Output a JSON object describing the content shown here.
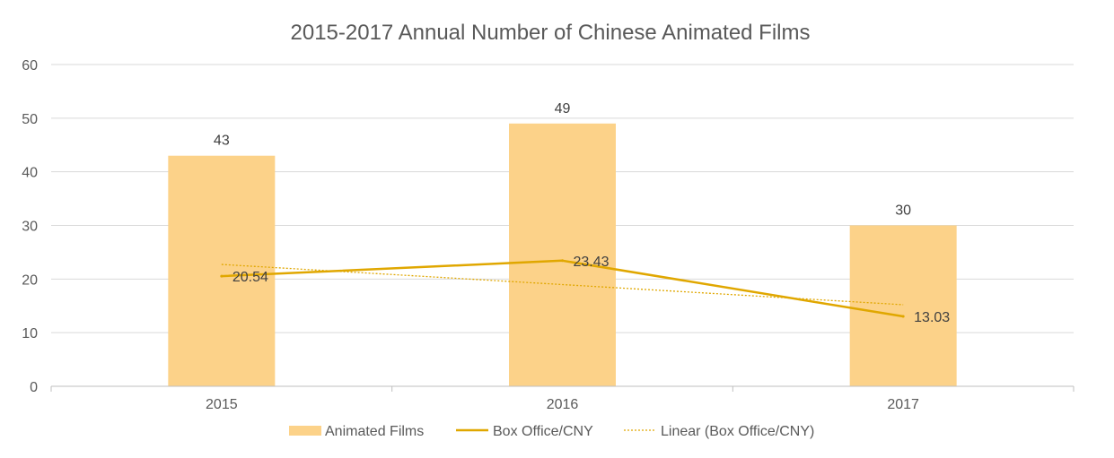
{
  "chart_data": {
    "type": "bar",
    "title": "2015-2017 Annual Number of Chinese Animated Films",
    "categories": [
      "2015",
      "2016",
      "2017"
    ],
    "ylim": [
      0,
      60
    ],
    "yticks": [
      0,
      10,
      20,
      30,
      40,
      50,
      60
    ],
    "ytick_labels": [
      "0",
      "10",
      "20",
      "30",
      "40",
      "50",
      "60"
    ],
    "grid": true,
    "legend_position": "bottom",
    "series": [
      {
        "name": "Animated Films",
        "kind": "bar",
        "color": "#FCD289",
        "values": [
          43,
          49,
          30
        ],
        "labels": [
          "43",
          "49",
          "30"
        ]
      },
      {
        "name": "Box Office/CNY",
        "kind": "line",
        "color": "#E0A700",
        "values": [
          20.54,
          23.43,
          13.03
        ],
        "labels": [
          "20.54",
          "23.43",
          "13.03"
        ]
      },
      {
        "name": "Linear (Box Office/CNY)",
        "kind": "trendline",
        "color": "#E0A700",
        "values": [
          22.72,
          18.97,
          15.21
        ]
      }
    ]
  }
}
